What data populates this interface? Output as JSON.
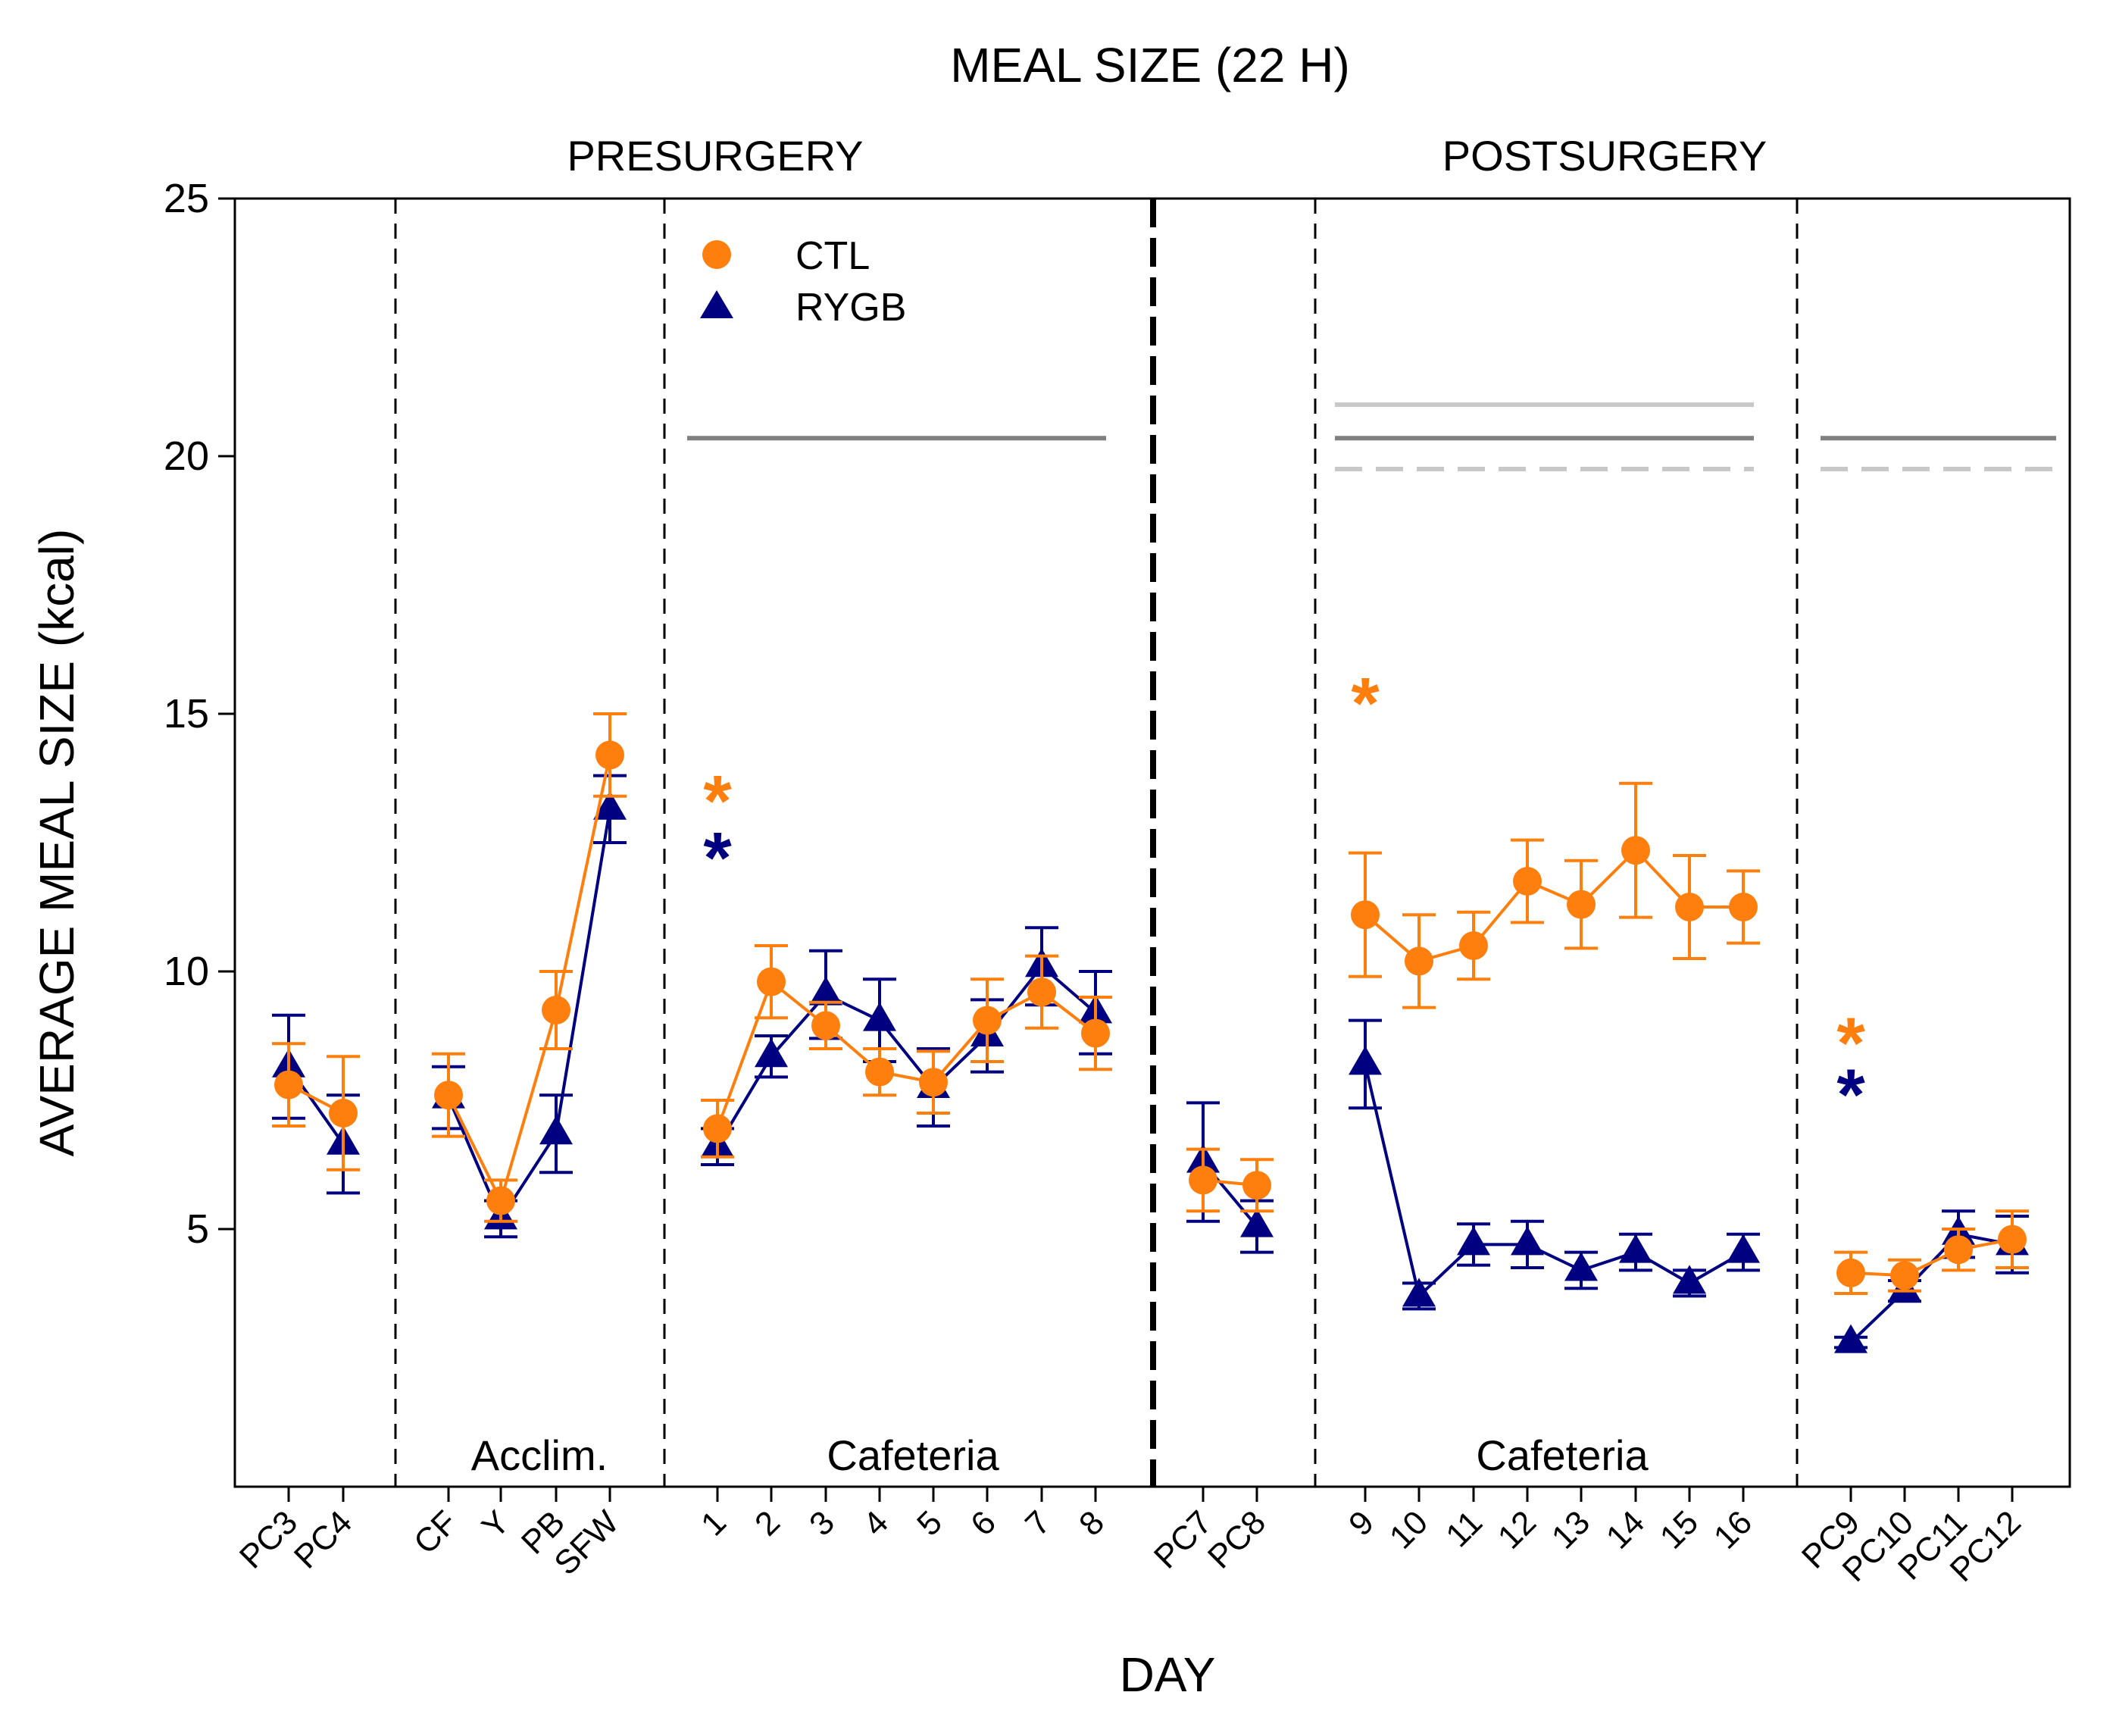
{
  "chart_data": {
    "type": "line",
    "title": "MEAL SIZE (22 H)",
    "xlabel": "DAY",
    "ylabel": "AVERAGE MEAL SIZE (kcal)",
    "ylim": [
      0,
      25
    ],
    "yticks": [
      5,
      10,
      15,
      20,
      25
    ],
    "phase_labels": [
      "PRESURGERY",
      "POSTSURGERY"
    ],
    "section_labels": [
      "Acclim.",
      "Cafeteria",
      "Cafeteria"
    ],
    "categories": [
      "PC3",
      "PC4",
      "CF",
      "Y",
      "PB",
      "SFW",
      "1",
      "2",
      "3",
      "4",
      "5",
      "6",
      "7",
      "8",
      "PC7",
      "PC8",
      "9",
      "10",
      "11",
      "12",
      "13",
      "14",
      "15",
      "16",
      "PC9",
      "PC10",
      "PC11",
      "PC12"
    ],
    "legend": [
      "CTL",
      "RYGB"
    ],
    "colors": {
      "CTL": "#ff7f0e",
      "RYGB": "#000080",
      "ref_dark": "#808080",
      "ref_light": "#c8c8c8"
    },
    "segments": [
      [
        0,
        1
      ],
      [
        2,
        5
      ],
      [
        6,
        13
      ],
      [
        14,
        15
      ],
      [
        16,
        23
      ],
      [
        24,
        27
      ]
    ],
    "series": [
      {
        "name": "CTL",
        "marker": "circle",
        "values": [
          7.8,
          7.25,
          7.6,
          5.55,
          9.25,
          14.2,
          6.95,
          9.8,
          8.95,
          8.05,
          7.85,
          9.05,
          9.6,
          8.8,
          5.95,
          5.85,
          11.1,
          10.2,
          10.5,
          11.75,
          11.3,
          12.35,
          11.25,
          11.25,
          4.15,
          4.1,
          4.6,
          4.8
        ],
        "errors": [
          0.8,
          1.1,
          0.8,
          0.4,
          0.75,
          0.8,
          0.55,
          0.7,
          0.45,
          0.45,
          0.6,
          0.8,
          0.7,
          0.7,
          0.6,
          0.5,
          1.2,
          0.9,
          0.65,
          0.8,
          0.85,
          1.3,
          1.0,
          0.7,
          0.4,
          0.3,
          0.4,
          0.55
        ]
      },
      {
        "name": "RYGB",
        "marker": "triangle",
        "values": [
          8.15,
          6.65,
          7.55,
          5.2,
          6.85,
          13.15,
          6.6,
          8.35,
          9.55,
          9.05,
          7.75,
          8.75,
          10.1,
          9.2,
          6.3,
          5.05,
          8.2,
          3.7,
          4.7,
          4.7,
          4.2,
          4.55,
          3.95,
          4.55,
          2.8,
          3.8,
          4.9,
          4.7
        ],
        "errors": [
          1.0,
          0.95,
          0.6,
          0.35,
          0.75,
          0.65,
          0.35,
          0.4,
          0.85,
          0.8,
          0.75,
          0.7,
          0.75,
          0.8,
          1.15,
          0.5,
          0.85,
          0.25,
          0.4,
          0.45,
          0.35,
          0.35,
          0.25,
          0.35,
          0.1,
          0.2,
          0.45,
          0.55
        ]
      }
    ],
    "significance": [
      {
        "category": "1",
        "symbol": "*",
        "series": "CTL",
        "y": 13.5
      },
      {
        "category": "1",
        "symbol": "*",
        "series": "RYGB",
        "y": 12.4
      },
      {
        "category": "9",
        "symbol": "*",
        "series": "CTL",
        "y": 15.4
      },
      {
        "category": "PC9",
        "symbol": "*",
        "series": "CTL",
        "y": 8.8
      },
      {
        "category": "PC9",
        "symbol": "*",
        "series": "RYGB",
        "y": 7.8
      }
    ],
    "reference_lines": [
      {
        "from": "1",
        "to": "8",
        "y": 20.35,
        "style": "solid",
        "shade": "dark"
      },
      {
        "from": "9",
        "to": "16",
        "y": 21.0,
        "style": "solid",
        "shade": "light"
      },
      {
        "from": "9",
        "to": "16",
        "y": 20.35,
        "style": "solid",
        "shade": "dark"
      },
      {
        "from": "9",
        "to": "16",
        "y": 19.75,
        "style": "dashed",
        "shade": "light"
      },
      {
        "from": "PC9",
        "to": "PC12",
        "y": 20.35,
        "style": "solid",
        "shade": "dark"
      },
      {
        "from": "PC9",
        "to": "PC12",
        "y": 19.75,
        "style": "dashed",
        "shade": "light"
      }
    ]
  }
}
